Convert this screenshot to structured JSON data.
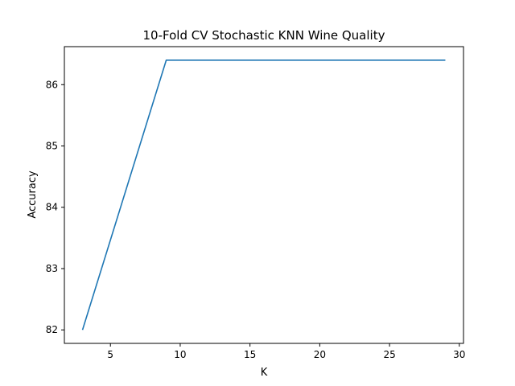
{
  "chart_data": {
    "type": "line",
    "title": "10-Fold CV Stochastic KNN Wine Quality",
    "xlabel": "K",
    "ylabel": "Accuracy",
    "xlim": [
      1.7,
      30.3
    ],
    "ylim": [
      81.78,
      86.62
    ],
    "xticks": [
      5,
      10,
      15,
      20,
      25,
      30
    ],
    "yticks": [
      82,
      83,
      84,
      85,
      86
    ],
    "grid": false,
    "series": [
      {
        "color": "#1f77b4",
        "x": [
          3,
          9,
          29
        ],
        "y": [
          82.0,
          86.4,
          86.4
        ]
      }
    ]
  }
}
